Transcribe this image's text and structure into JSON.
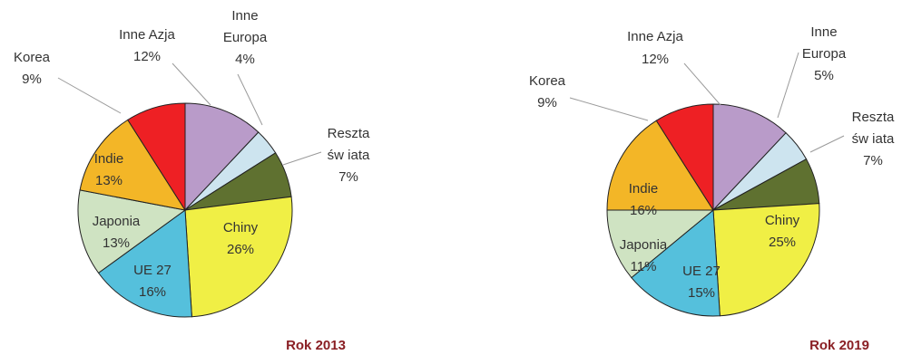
{
  "chart_data": [
    {
      "type": "pie",
      "title": "Rok 2013",
      "slices": [
        {
          "name": "Inne Azja",
          "value": 12,
          "label": "12%",
          "color": "#b99bc9"
        },
        {
          "name": "Inne Europa",
          "value": 4,
          "label": "4%",
          "color": "#cde4ef"
        },
        {
          "name": "Reszta świata",
          "value": 7,
          "label": "7%",
          "color": "#5f7130"
        },
        {
          "name": "Chiny",
          "value": 26,
          "label": "26%",
          "color": "#f0ef45"
        },
        {
          "name": "UE 27",
          "value": 16,
          "label": "16%",
          "color": "#55c0dc"
        },
        {
          "name": "Japonia",
          "value": 13,
          "label": "13%",
          "color": "#cfe3c2"
        },
        {
          "name": "Indie",
          "value": 13,
          "label": "13%",
          "color": "#f3b627"
        },
        {
          "name": "Korea",
          "value": 9,
          "label": "9%",
          "color": "#ee2024"
        }
      ]
    },
    {
      "type": "pie",
      "title": "Rok 2019",
      "slices": [
        {
          "name": "Inne Azja",
          "value": 12,
          "label": "12%",
          "color": "#b99bc9"
        },
        {
          "name": "Inne Europa",
          "value": 5,
          "label": "5%",
          "color": "#cde4ef"
        },
        {
          "name": "Reszta świata",
          "value": 7,
          "label": "7%",
          "color": "#5f7130"
        },
        {
          "name": "Chiny",
          "value": 25,
          "label": "25%",
          "color": "#f0ef45"
        },
        {
          "name": "UE 27",
          "value": 15,
          "label": "15%",
          "color": "#55c0dc"
        },
        {
          "name": "Japonia",
          "value": 11,
          "label": "11%",
          "color": "#cfe3c2"
        },
        {
          "name": "Indie",
          "value": 16,
          "label": "16%",
          "color": "#f3b627"
        },
        {
          "name": "Korea",
          "value": 9,
          "label": "9%",
          "color": "#ee2024"
        }
      ]
    }
  ],
  "labels": {
    "inne_azja": "Inne Azja",
    "inne": "Inne",
    "europa": "Europa",
    "reszta": "Reszta",
    "swiata": "św iata",
    "korea": "Korea",
    "indie": "Indie",
    "japonia": "Japonia",
    "ue27": "UE 27",
    "chiny": "Chiny"
  }
}
